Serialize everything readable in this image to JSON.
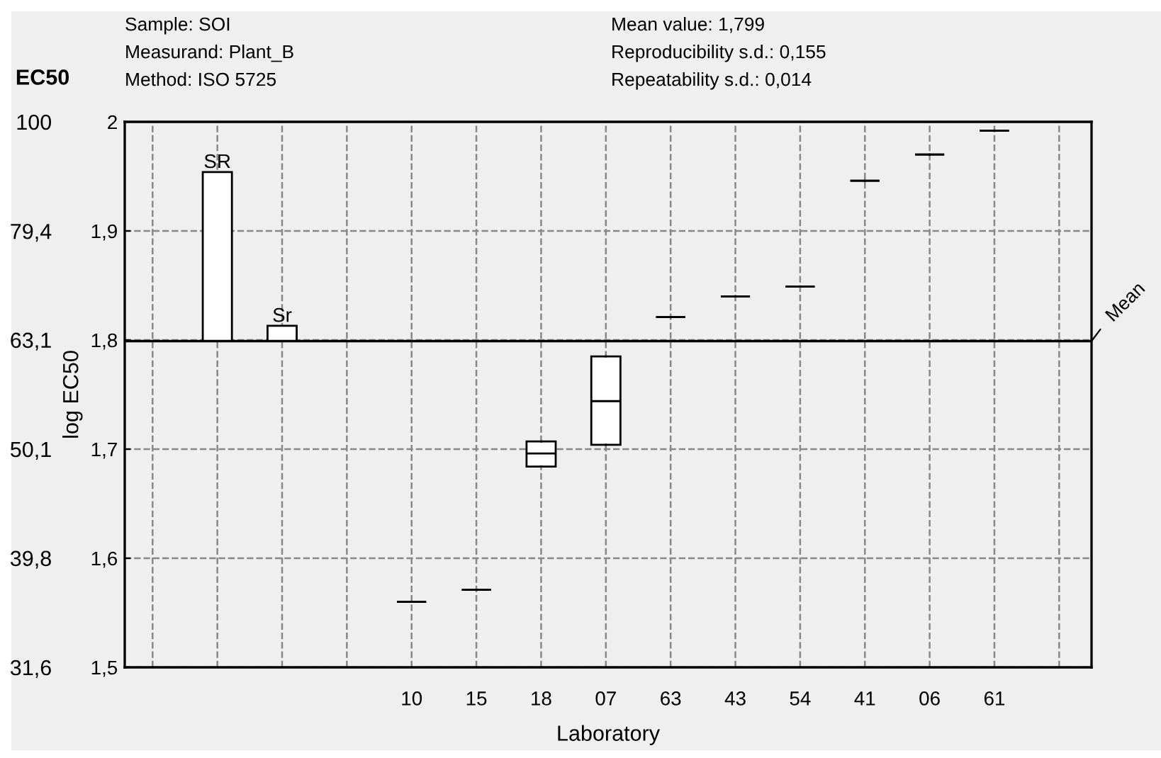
{
  "chart_data": {
    "type": "box",
    "xlabel": "Laboratory",
    "ylabel": "log EC50",
    "y2label": "EC50",
    "categories": [
      null,
      null,
      null,
      null,
      "10",
      "15",
      "18",
      "07",
      "63",
      "43",
      "54",
      "41",
      "06",
      "61",
      null
    ],
    "series": [
      {
        "type": "bar",
        "color": "#ffffff",
        "base": [
          null,
          1.799,
          1.799,
          null,
          null,
          null,
          null,
          null,
          null,
          null,
          null,
          null,
          null,
          null,
          null
        ],
        "values": [
          null,
          0.155,
          0.014,
          null,
          null,
          null,
          null,
          null,
          null,
          null,
          null,
          null,
          null,
          null,
          null
        ],
        "value_labels": [
          null,
          "SR",
          "Sr",
          null,
          null,
          null,
          null,
          null,
          null,
          null,
          null,
          null,
          null,
          null,
          null
        ]
      },
      {
        "colors": [
          null,
          null,
          null,
          null,
          "#000000",
          "#000000",
          "#ffffff",
          "#ffffff",
          "#000000",
          "#000000",
          "#000000",
          "#000000",
          "#000000",
          "#000000",
          null
        ],
        "boxes": [
          null,
          null,
          null,
          null,
          {
            "low": 1.56,
            "q1": 1.56,
            "median": 1.56,
            "q3": 1.56,
            "high": 1.56
          },
          {
            "low": 1.571,
            "q1": 1.571,
            "median": 1.571,
            "q3": 1.571,
            "high": 1.571
          },
          {
            "low": 1.684,
            "q1": 1.684,
            "median": 1.696,
            "q3": 1.707,
            "high": 1.707
          },
          {
            "low": 1.704,
            "q1": 1.704,
            "median": 1.744,
            "q3": 1.785,
            "high": 1.785
          },
          {
            "low": 1.821,
            "q1": 1.821,
            "median": 1.821,
            "q3": 1.821,
            "high": 1.821
          },
          {
            "low": 1.84,
            "q1": 1.84,
            "median": 1.84,
            "q3": 1.84,
            "high": 1.84
          },
          {
            "low": 1.849,
            "q1": 1.849,
            "median": 1.849,
            "q3": 1.849,
            "high": 1.849
          },
          {
            "low": 1.946,
            "q1": 1.946,
            "median": 1.946,
            "q3": 1.946,
            "high": 1.946
          },
          {
            "low": 1.97,
            "q1": 1.97,
            "median": 1.97,
            "q3": 1.97,
            "high": 1.97
          },
          {
            "low": 1.992,
            "q1": 1.992,
            "median": 1.992,
            "q3": 1.992,
            "high": 1.992
          },
          null
        ]
      }
    ],
    "ylim": [
      1.5,
      2
    ],
    "yticks": [
      {
        "value": 1.5,
        "label": "1,5"
      },
      {
        "value": 1.6,
        "label": "1,6"
      },
      {
        "value": 1.7,
        "label": "1,7"
      },
      {
        "value": 1.8,
        "label": "1,8"
      },
      {
        "value": 1.9,
        "label": "1,9"
      },
      2
    ],
    "y2lim": [
      31.6,
      100
    ],
    "log": "y2",
    "y2ticks": [
      {
        "value": 31.6,
        "label": "31,6"
      },
      {
        "value": 39.8,
        "label": "39,8"
      },
      {
        "value": 50.1,
        "label": "50,1"
      },
      {
        "value": 63.1,
        "label": "63,1"
      },
      {
        "value": 79.4,
        "label": "79,4"
      },
      100
    ],
    "ref_lines": [
      {
        "axis": "y",
        "value": 1.799,
        "label": "Mean",
        "color": "#000000",
        "line_style": "solid"
      }
    ],
    "grid": true,
    "annotations": [
      "Sample: SOI",
      "Measurand: Plant_B",
      "Method: ISO 5725",
      "Mean value: 1,799",
      "Reproducibility s.d.: 0,155",
      "Repeatability s.d.: 0,014"
    ]
  }
}
